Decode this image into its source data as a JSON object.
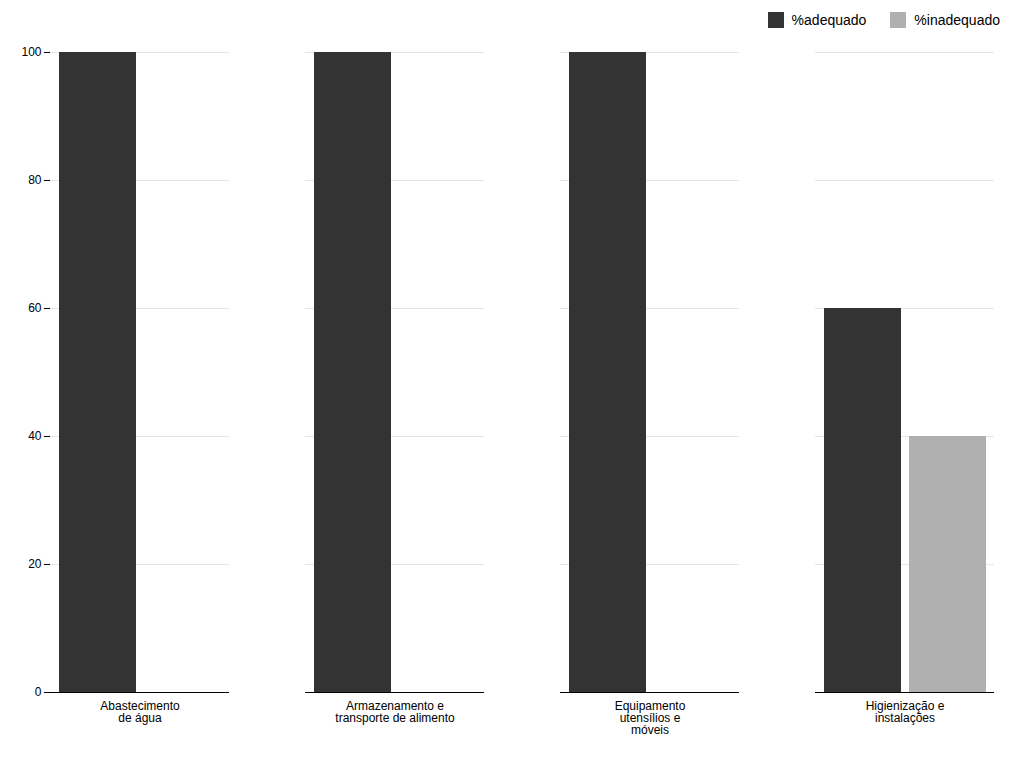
{
  "chart_data": {
    "type": "bar",
    "categories": [
      "Abastecimento\nde água",
      "Armazenamento e\ntransporte de alimento",
      "Equipamento\nutensílios e\nmóveis",
      "Higienização e\ninstalações"
    ],
    "series": [
      {
        "name": "%adequado",
        "color": "#333333",
        "values": [
          100,
          100,
          100,
          60
        ]
      },
      {
        "name": "%inadequado",
        "color": "#b0b0b0",
        "values": [
          0,
          0,
          0,
          40
        ]
      }
    ],
    "ylim": [
      0,
      100
    ],
    "yticks": [
      0,
      20,
      40,
      60,
      80,
      100
    ],
    "grid": true,
    "legend": "upper right"
  }
}
